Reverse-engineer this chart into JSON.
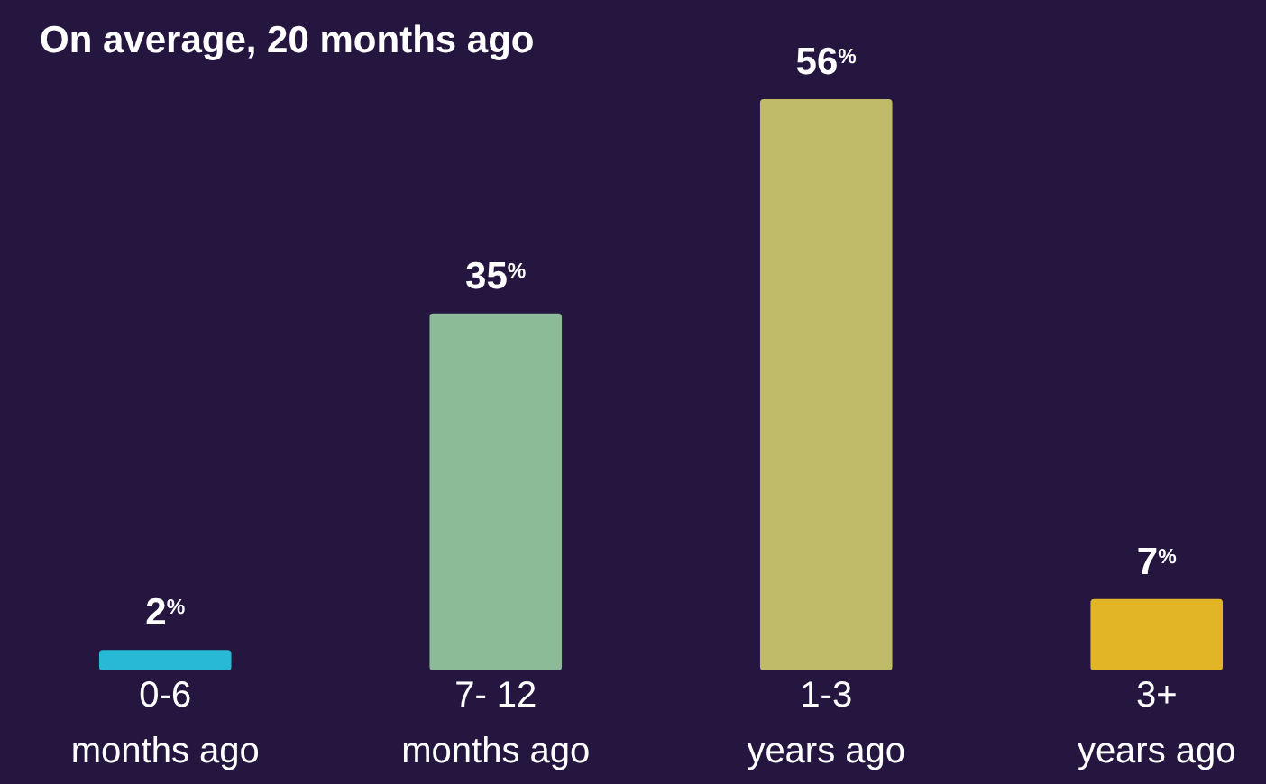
{
  "chart_data": {
    "type": "bar",
    "title": "On average, 20 months ago",
    "categories": [
      "0-6\nmonths ago",
      "7- 12\nmonths ago",
      "1-3\nyears ago",
      "3+\nyears ago"
    ],
    "values": [
      2,
      35,
      56,
      7
    ],
    "colors": [
      "#27b9d5",
      "#8bbb97",
      "#bfbb68",
      "#e1b526"
    ],
    "value_labels": [
      "2$^{%}$",
      "35$^{%}$",
      "56$^{%}$",
      "7$^{%}$"
    ],
    "tick_labels": "x"
  }
}
